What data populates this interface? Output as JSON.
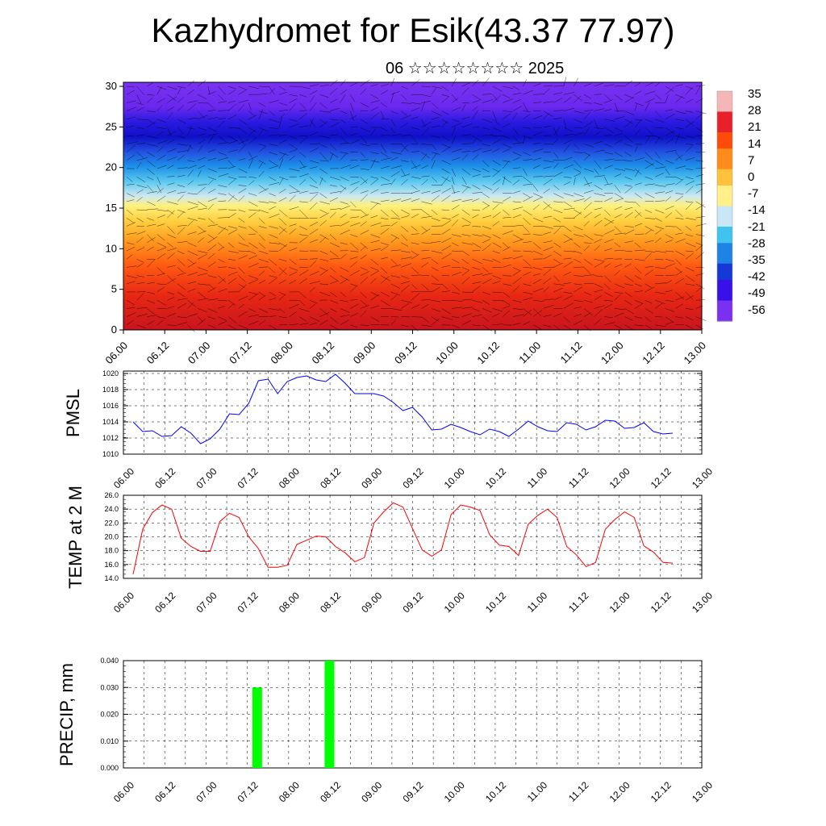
{
  "title": "Kazhydromet for Esik(43.37 77.97)",
  "subtitle": "06 ☆☆☆☆☆☆☆☆ 2025",
  "time_labels": [
    "06.00",
    "06.12",
    "07.00",
    "07.12",
    "08.00",
    "08.12",
    "09.00",
    "09.12",
    "10.00",
    "10.12",
    "11.00",
    "11.12",
    "12.00",
    "12.12",
    "13.00"
  ],
  "chart_data": [
    {
      "type": "heatmap",
      "title": "",
      "description_panel": "temperature cross-section with wind barbs",
      "y_ticks": [
        0,
        5,
        10,
        15,
        20,
        25,
        30
      ],
      "ylim": [
        0,
        30.5
      ],
      "colorbar_labels": [
        "35",
        "28",
        "21",
        "14",
        "7",
        "0",
        "-7",
        "-14",
        "-21",
        "-28",
        "-35",
        "-42",
        "-49",
        "-56"
      ],
      "colorbar_colors": [
        "#f4b6b6",
        "#e8202a",
        "#ff4b0a",
        "#ff8c1a",
        "#ffc23a",
        "#fff08a",
        "#c8e8f8",
        "#3fc4ef",
        "#1f82e6",
        "#1638d8",
        "#3a10e8",
        "#7a30f0"
      ]
    },
    {
      "type": "line",
      "ylabel": "PMSL",
      "y_ticks": [
        "1010",
        "1012",
        "1014",
        "1016",
        "1018",
        "1020"
      ],
      "ylim": [
        1010,
        1020.3
      ],
      "color": "#0000ff",
      "x": [
        0,
        1,
        2,
        3,
        4,
        5,
        6,
        7,
        8,
        9,
        10,
        11,
        12,
        13,
        14,
        15,
        16,
        17,
        18,
        19,
        20,
        21,
        22,
        23,
        24,
        25,
        26,
        27,
        28,
        29,
        30,
        31,
        32,
        33,
        34,
        35,
        36,
        37,
        38,
        39,
        40,
        41,
        42,
        43,
        44,
        45,
        46,
        47,
        48,
        49,
        50,
        51,
        52,
        53,
        54,
        55,
        56
      ],
      "values": [
        1014,
        1012.8,
        1012.9,
        1012.2,
        1012.3,
        1013.4,
        1012.6,
        1011.3,
        1011.9,
        1013.1,
        1015,
        1014.9,
        1016.3,
        1019.1,
        1019.3,
        1017.5,
        1019,
        1019.5,
        1019.7,
        1019.2,
        1019,
        1019.9,
        1018.8,
        1017.5,
        1017.5,
        1017.5,
        1017.2,
        1016.4,
        1015.4,
        1015.8,
        1014.6,
        1013,
        1013.1,
        1013.7,
        1013.3,
        1012.8,
        1012.4,
        1013.1,
        1012.8,
        1012.2,
        1013.1,
        1014.1,
        1013.4,
        1012.9,
        1012.8,
        1013.9,
        1013.7,
        1013,
        1013.4,
        1014.2,
        1014.1,
        1013.2,
        1013.3,
        1013.9,
        1012.8,
        1012.5,
        1012.6
      ]
    },
    {
      "type": "line",
      "ylabel": "TEMP at 2 M",
      "y_ticks": [
        "14.0",
        "16.0",
        "18.0",
        "20.0",
        "22.0",
        "24.0",
        "26.0"
      ],
      "ylim": [
        14,
        26
      ],
      "color": "#ff0000",
      "x": [
        0,
        1,
        2,
        3,
        4,
        5,
        6,
        7,
        8,
        9,
        10,
        11,
        12,
        13,
        14,
        15,
        16,
        17,
        18,
        19,
        20,
        21,
        22,
        23,
        24,
        25,
        26,
        27,
        28,
        29,
        30,
        31,
        32,
        33,
        34,
        35,
        36,
        37,
        38,
        39,
        40,
        41,
        42,
        43,
        44,
        45,
        46,
        47,
        48,
        49,
        50,
        51,
        52,
        53,
        54,
        55,
        56
      ],
      "values": [
        14.6,
        21.1,
        23.5,
        24.6,
        24,
        19.8,
        18.6,
        17.9,
        17.9,
        22.2,
        23.4,
        22.8,
        20,
        18.3,
        15.6,
        15.6,
        15.9,
        18.9,
        19.5,
        20.1,
        20,
        18.6,
        17.7,
        16.4,
        17,
        22,
        23.6,
        24.9,
        24.3,
        21.2,
        18.1,
        17.2,
        18.1,
        23.2,
        24.6,
        24.3,
        23.8,
        20.3,
        18.8,
        18.6,
        17.3,
        21.8,
        23.1,
        24,
        22.8,
        18.6,
        17.4,
        15.7,
        16.3,
        21.1,
        22.5,
        23.6,
        22.8,
        18.7,
        17.8,
        16.3,
        16.2
      ]
    },
    {
      "type": "bar",
      "ylabel": "PRECIP, mm",
      "y_ticks": [
        "0.000",
        "0.010",
        "0.020",
        "0.030",
        "0.040"
      ],
      "ylim": [
        0,
        0.04
      ],
      "color": "#00ff00",
      "bars": [
        {
          "x": 13.5,
          "value": 0.03
        },
        {
          "x": 20.5,
          "value": 0.04
        }
      ]
    }
  ]
}
